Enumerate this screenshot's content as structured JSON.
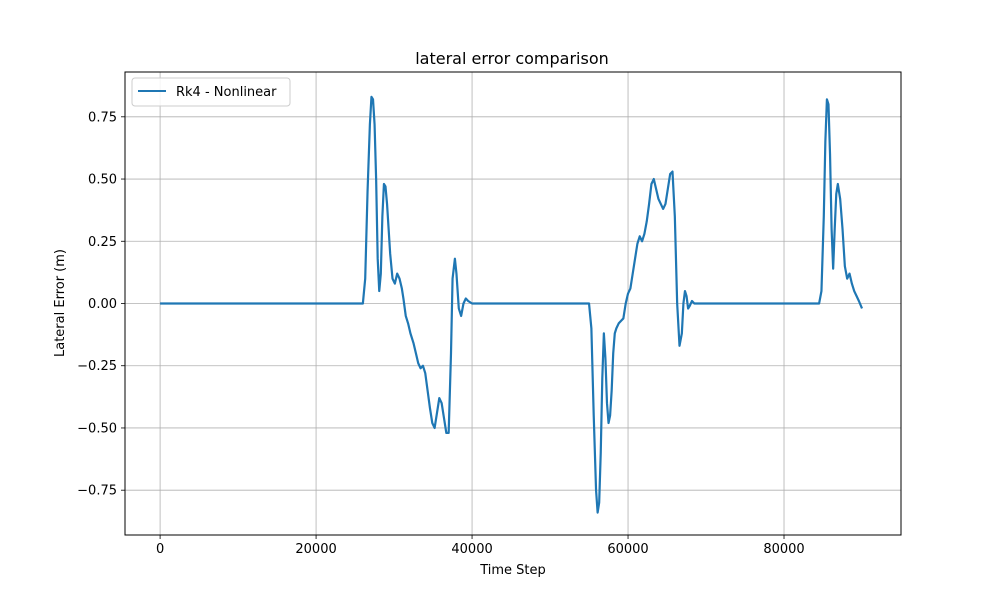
{
  "chart_data": {
    "type": "line",
    "title": "lateral error comparison",
    "xlabel": "Time Step",
    "ylabel": "Lateral Error (m)",
    "xlim": [
      -4500,
      95000
    ],
    "ylim": [
      -0.93,
      0.93
    ],
    "xticks": [
      0,
      20000,
      40000,
      60000,
      80000
    ],
    "xtick_labels": [
      "0",
      "20000",
      "40000",
      "60000",
      "80000"
    ],
    "yticks": [
      -0.75,
      -0.5,
      -0.25,
      0.0,
      0.25,
      0.5,
      0.75
    ],
    "ytick_labels": [
      "−0.75",
      "−0.50",
      "−0.25",
      "0.00",
      "0.25",
      "0.50",
      "0.75"
    ],
    "grid": true,
    "legend": {
      "position": "upper-left",
      "entries": [
        "Rk4 - Nonlinear"
      ]
    },
    "series": [
      {
        "name": "Rk4 - Nonlinear",
        "color": "#1f77b4",
        "x": [
          0,
          26000,
          26300,
          26600,
          26900,
          27100,
          27300,
          27500,
          27700,
          27900,
          28100,
          28300,
          28500,
          28700,
          28900,
          29100,
          29300,
          29500,
          29800,
          30100,
          30400,
          30700,
          31000,
          31200,
          31500,
          31800,
          32100,
          32500,
          32800,
          33100,
          33400,
          33700,
          34000,
          34300,
          34600,
          34900,
          35200,
          35500,
          35800,
          36100,
          36400,
          36700,
          37000,
          37300,
          37500,
          37800,
          38000,
          38300,
          38600,
          38900,
          39200,
          39500,
          40000,
          41000,
          55000,
          55300,
          55600,
          55900,
          56100,
          56300,
          56500,
          56700,
          56900,
          57100,
          57300,
          57500,
          57700,
          57900,
          58100,
          58300,
          58500,
          58800,
          59100,
          59400,
          59700,
          60000,
          60300,
          60600,
          60900,
          61200,
          61500,
          61800,
          62100,
          62400,
          62700,
          63000,
          63300,
          63600,
          63900,
          64200,
          64500,
          64800,
          65100,
          65400,
          65700,
          66000,
          66300,
          66600,
          66900,
          67100,
          67300,
          67500,
          67700,
          67900,
          68200,
          68500,
          68800,
          69200,
          70000,
          84500,
          84800,
          85100,
          85300,
          85500,
          85700,
          85900,
          86100,
          86300,
          86500,
          86700,
          86900,
          87200,
          87500,
          87800,
          88100,
          88400,
          88700,
          89000,
          89300,
          89600,
          90000
        ],
        "values": [
          0.0,
          0.0,
          0.1,
          0.45,
          0.72,
          0.83,
          0.82,
          0.72,
          0.5,
          0.18,
          0.05,
          0.12,
          0.35,
          0.48,
          0.47,
          0.4,
          0.3,
          0.2,
          0.1,
          0.08,
          0.12,
          0.1,
          0.06,
          0.02,
          -0.05,
          -0.08,
          -0.12,
          -0.16,
          -0.2,
          -0.24,
          -0.26,
          -0.25,
          -0.28,
          -0.35,
          -0.42,
          -0.48,
          -0.5,
          -0.44,
          -0.38,
          -0.4,
          -0.46,
          -0.52,
          -0.52,
          -0.2,
          0.1,
          0.18,
          0.12,
          -0.02,
          -0.05,
          0.0,
          0.02,
          0.01,
          0.0,
          0.0,
          0.0,
          -0.1,
          -0.45,
          -0.75,
          -0.84,
          -0.8,
          -0.6,
          -0.3,
          -0.12,
          -0.22,
          -0.4,
          -0.48,
          -0.45,
          -0.35,
          -0.2,
          -0.12,
          -0.1,
          -0.08,
          -0.07,
          -0.06,
          0.0,
          0.04,
          0.06,
          0.12,
          0.18,
          0.24,
          0.27,
          0.25,
          0.28,
          0.33,
          0.4,
          0.48,
          0.5,
          0.46,
          0.42,
          0.4,
          0.38,
          0.4,
          0.46,
          0.52,
          0.53,
          0.35,
          0.0,
          -0.17,
          -0.12,
          0.0,
          0.05,
          0.03,
          -0.02,
          -0.01,
          0.01,
          0.0,
          0.0,
          0.0,
          0.0,
          0.0,
          0.05,
          0.35,
          0.65,
          0.82,
          0.8,
          0.6,
          0.3,
          0.14,
          0.3,
          0.44,
          0.48,
          0.42,
          0.3,
          0.15,
          0.1,
          0.12,
          0.08,
          0.05,
          0.03,
          0.01,
          -0.02
        ]
      }
    ]
  }
}
